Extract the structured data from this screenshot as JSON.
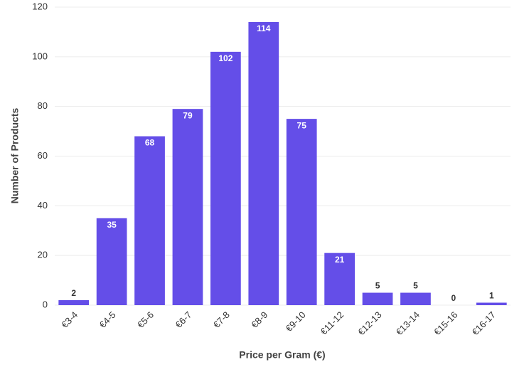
{
  "chart_data": {
    "type": "bar",
    "x_label": "Price per Gram (€)",
    "y_label": "Number of Products",
    "categories": [
      "€3-4",
      "€4-5",
      "€5-6",
      "€6-7",
      "€7-8",
      "€8-9",
      "€9-10",
      "€11-12",
      "€12-13",
      "€13-14",
      "€15-16",
      "€16-17"
    ],
    "values": [
      2,
      35,
      68,
      79,
      102,
      114,
      75,
      21,
      5,
      5,
      0,
      1
    ],
    "color": "#644ee8",
    "ylim": [
      0,
      120
    ],
    "yticks": [
      0,
      20,
      40,
      60,
      80,
      100,
      120
    ],
    "grid": true
  }
}
